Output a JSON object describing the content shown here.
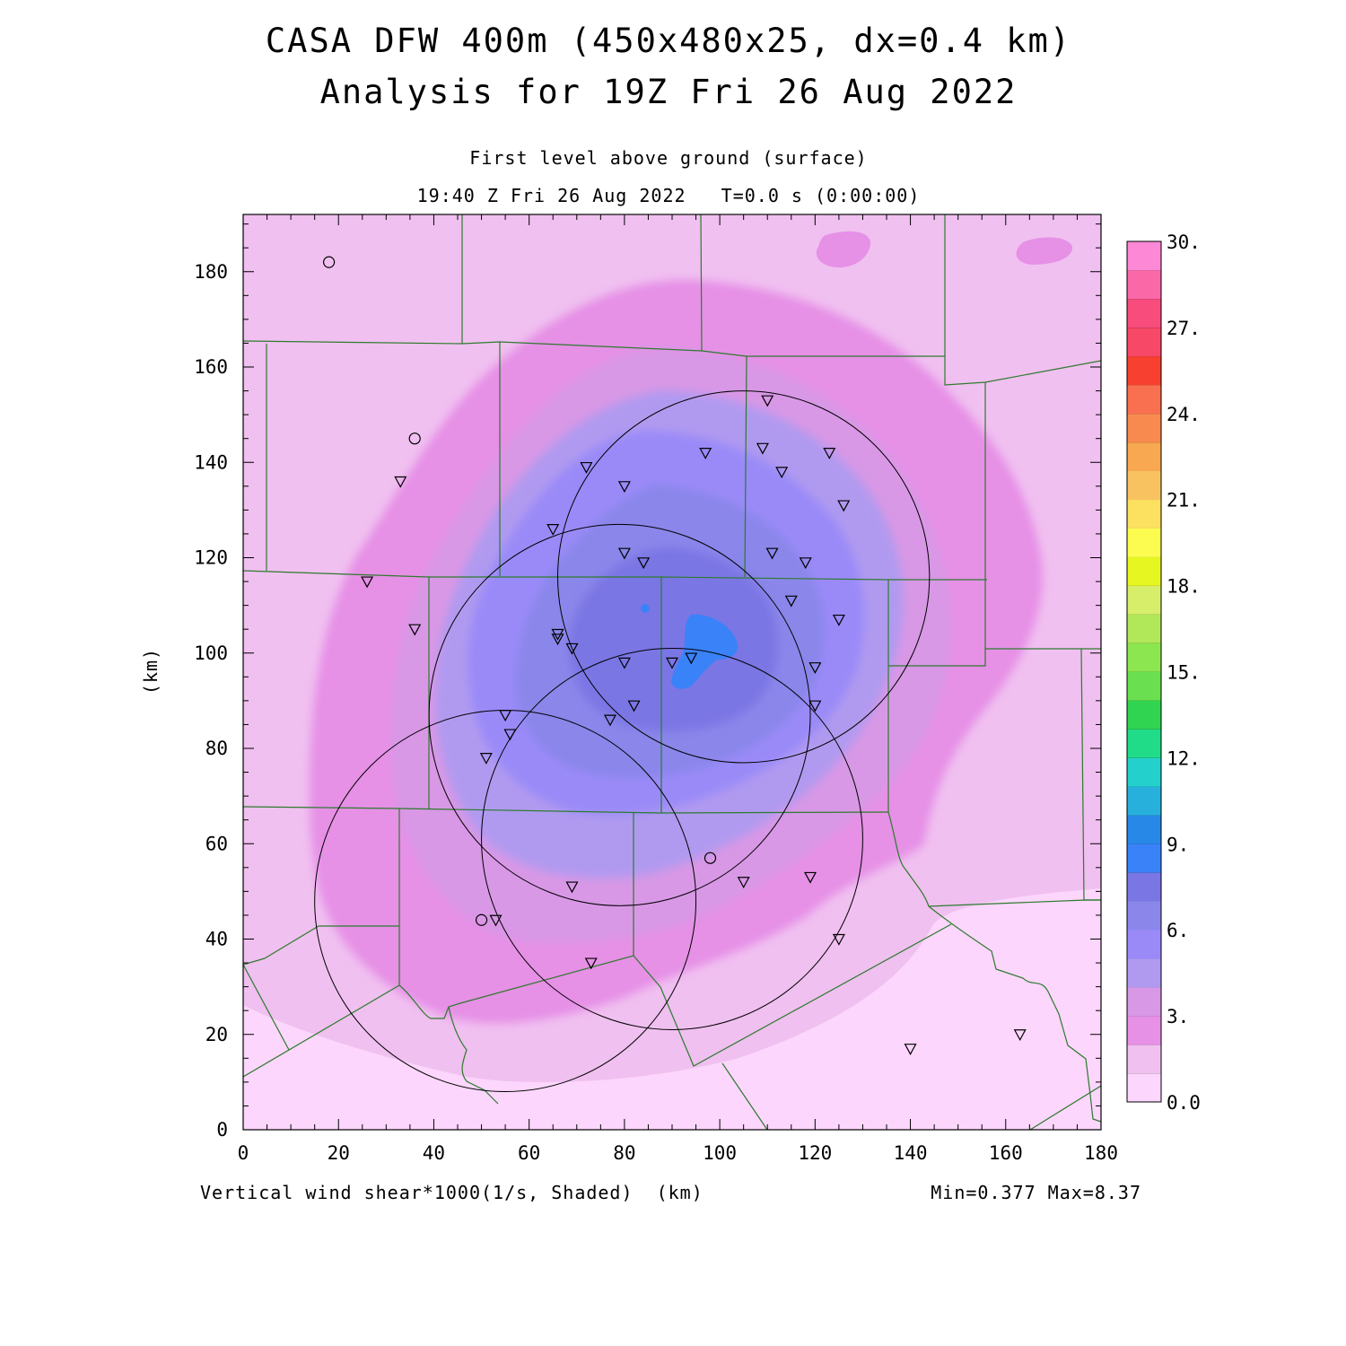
{
  "title": {
    "line1": "CASA DFW 400m (450x480x25, dx=0.4 km)",
    "line2": "Analysis for 19Z Fri 26 Aug 2022"
  },
  "subtitle": {
    "level": "First level above ground (surface)",
    "time": "19:40 Z Fri 26 Aug 2022   T=0.0 s (0:00:00)"
  },
  "footer": {
    "field": "Vertical wind shear*1000(1/s, Shaded)  (km)",
    "range": "Min=0.377 Max=8.37"
  },
  "axes": {
    "ylabel": "(km)",
    "xticks": [
      "0",
      "20",
      "40",
      "60",
      "80",
      "100",
      "120",
      "140",
      "160",
      "180"
    ],
    "yticks": [
      "0",
      "20",
      "40",
      "60",
      "80",
      "100",
      "120",
      "140",
      "160",
      "180"
    ],
    "xrange": [
      0,
      180
    ],
    "yrange": [
      0,
      192
    ]
  },
  "colorbar": {
    "labels": [
      "30.",
      "27.",
      "24.",
      "21.",
      "18.",
      "15.",
      "12.",
      "9.",
      "6.",
      "3.",
      "0.0"
    ],
    "colors": [
      "#fcd6fc",
      "#f0c0f0",
      "#e690e6",
      "#d898e6",
      "#b09af0",
      "#9a8af8",
      "#8a86ea",
      "#7a76e4",
      "#3a82f8",
      "#2888e8",
      "#28b0dc",
      "#24d0cc",
      "#20dc88",
      "#30d450",
      "#6ae050",
      "#8ce650",
      "#b0e85a",
      "#d6ee6a",
      "#e6f620",
      "#fcfc50",
      "#fce060",
      "#f8c260",
      "#f8a850",
      "#f88a50",
      "#f87050",
      "#f84030",
      "#f84868",
      "#f84c7c",
      "#fa68a8",
      "#fc88d6"
    ]
  },
  "chart_data": {
    "type": "map",
    "field": "Vertical wind shear*1000 (1/s)",
    "min": 0.377,
    "max": 8.37,
    "radar_rings": [
      {
        "cx": 105,
        "cy": 116,
        "r": 39
      },
      {
        "cx": 79,
        "cy": 87,
        "r": 40
      },
      {
        "cx": 90,
        "cy": 61,
        "r": 40
      },
      {
        "cx": 55,
        "cy": 48,
        "r": 40
      }
    ],
    "stations_triangle": [
      [
        110,
        153
      ],
      [
        97,
        142
      ],
      [
        109,
        143
      ],
      [
        123,
        142
      ],
      [
        72,
        139
      ],
      [
        113,
        138
      ],
      [
        80,
        135
      ],
      [
        126,
        131
      ],
      [
        65,
        126
      ],
      [
        80,
        121
      ],
      [
        84,
        119
      ],
      [
        111,
        121
      ],
      [
        118,
        119
      ],
      [
        115,
        111
      ],
      [
        125,
        107
      ],
      [
        66,
        104
      ],
      [
        66,
        103
      ],
      [
        69,
        101
      ],
      [
        94,
        99
      ],
      [
        90,
        98
      ],
      [
        80,
        98
      ],
      [
        120,
        97
      ],
      [
        82,
        89
      ],
      [
        120,
        89
      ],
      [
        77,
        86
      ],
      [
        55,
        87
      ],
      [
        56,
        83
      ],
      [
        51,
        78
      ],
      [
        33,
        136
      ],
      [
        26,
        115
      ],
      [
        36,
        105
      ],
      [
        105,
        52
      ],
      [
        119,
        53
      ],
      [
        69,
        51
      ],
      [
        53,
        44
      ],
      [
        125,
        40
      ],
      [
        73,
        35
      ],
      [
        163,
        20
      ],
      [
        140,
        17
      ]
    ],
    "stations_circle": [
      [
        18,
        182
      ],
      [
        36,
        145
      ],
      [
        98,
        57
      ],
      [
        50,
        44
      ]
    ]
  }
}
